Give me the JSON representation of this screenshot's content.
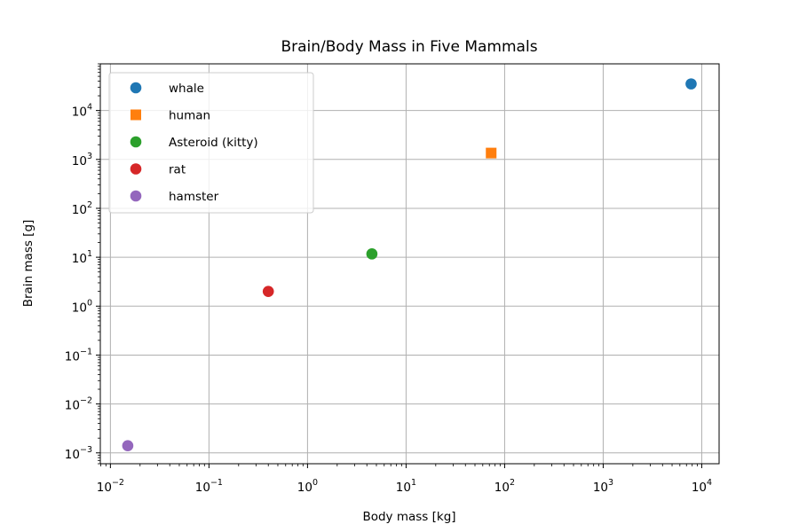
{
  "chart_data": {
    "type": "scatter",
    "title": "Brain/Body Mass in Five Mammals",
    "xlabel": "Body mass [kg]",
    "ylabel": "Brain mass [g]",
    "xscale": "log",
    "yscale": "log",
    "xlim": [
      0.0079,
      15000
    ],
    "ylim": [
      0.0006,
      90000
    ],
    "grid": true,
    "legend_position": "upper-left",
    "x_ticks": [
      {
        "value": 0.01,
        "base": "10",
        "exp": "−2"
      },
      {
        "value": 0.1,
        "base": "10",
        "exp": "−1"
      },
      {
        "value": 1,
        "base": "10",
        "exp": "0"
      },
      {
        "value": 10,
        "base": "10",
        "exp": "1"
      },
      {
        "value": 100,
        "base": "10",
        "exp": "2"
      },
      {
        "value": 1000,
        "base": "10",
        "exp": "3"
      },
      {
        "value": 10000,
        "base": "10",
        "exp": "4"
      }
    ],
    "y_ticks": [
      {
        "value": 0.001,
        "base": "10",
        "exp": "−3"
      },
      {
        "value": 0.01,
        "base": "10",
        "exp": "−2"
      },
      {
        "value": 0.1,
        "base": "10",
        "exp": "−1"
      },
      {
        "value": 1,
        "base": "10",
        "exp": "0"
      },
      {
        "value": 10,
        "base": "10",
        "exp": "1"
      },
      {
        "value": 100,
        "base": "10",
        "exp": "2"
      },
      {
        "value": 1000,
        "base": "10",
        "exp": "3"
      },
      {
        "value": 10000,
        "base": "10",
        "exp": "4"
      }
    ],
    "series": [
      {
        "name": "whale",
        "marker": "circle",
        "color": "#1f77b4",
        "x": 7800,
        "y": 35000
      },
      {
        "name": "human",
        "marker": "square",
        "color": "#ff7f0e",
        "x": 73,
        "y": 1350
      },
      {
        "name": "Asteroid (kitty)",
        "marker": "circle",
        "color": "#2ca02c",
        "x": 4.5,
        "y": 11.7
      },
      {
        "name": "rat",
        "marker": "circle",
        "color": "#d62728",
        "x": 0.4,
        "y": 2
      },
      {
        "name": "hamster",
        "marker": "circle",
        "color": "#9467bd",
        "x": 0.015,
        "y": 0.0014
      }
    ]
  }
}
